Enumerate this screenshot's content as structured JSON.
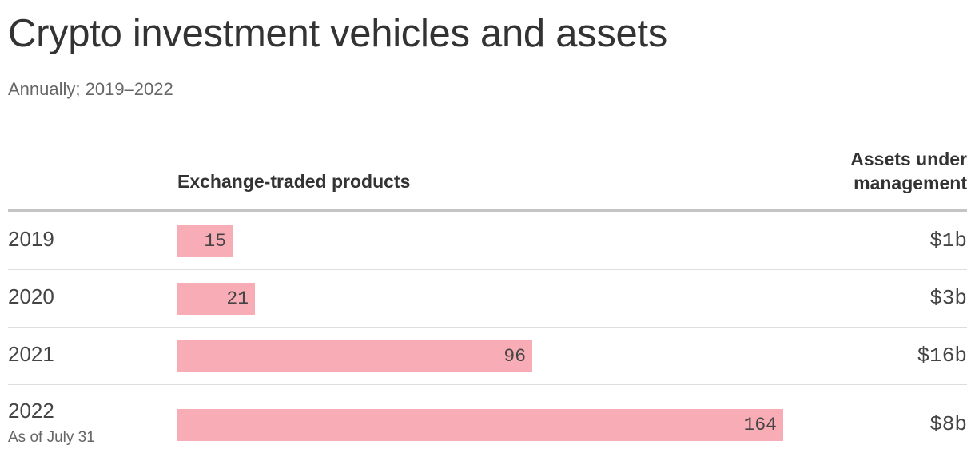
{
  "title": "Crypto investment vehicles and assets",
  "subtitle": "Annually; 2019–2022",
  "columns": {
    "etp": "Exchange-traded products",
    "aum_line1": "Assets under",
    "aum_line2": "management"
  },
  "colors": {
    "bar": "#f8adb6"
  },
  "chart_data": {
    "type": "bar",
    "orientation": "horizontal",
    "title": "Crypto investment vehicles and assets",
    "subtitle": "Annually; 2019–2022",
    "categories": [
      "2019",
      "2020",
      "2021",
      "2022"
    ],
    "category_notes": [
      "",
      "",
      "",
      "As of July 31"
    ],
    "series": [
      {
        "name": "Exchange-traded products",
        "values": [
          15,
          21,
          96,
          164
        ]
      }
    ],
    "aum_labels": [
      "$1b",
      "$3b",
      "$16b",
      "$8b"
    ],
    "xlim": [
      0,
      164
    ],
    "grid": false,
    "legend": "none"
  }
}
